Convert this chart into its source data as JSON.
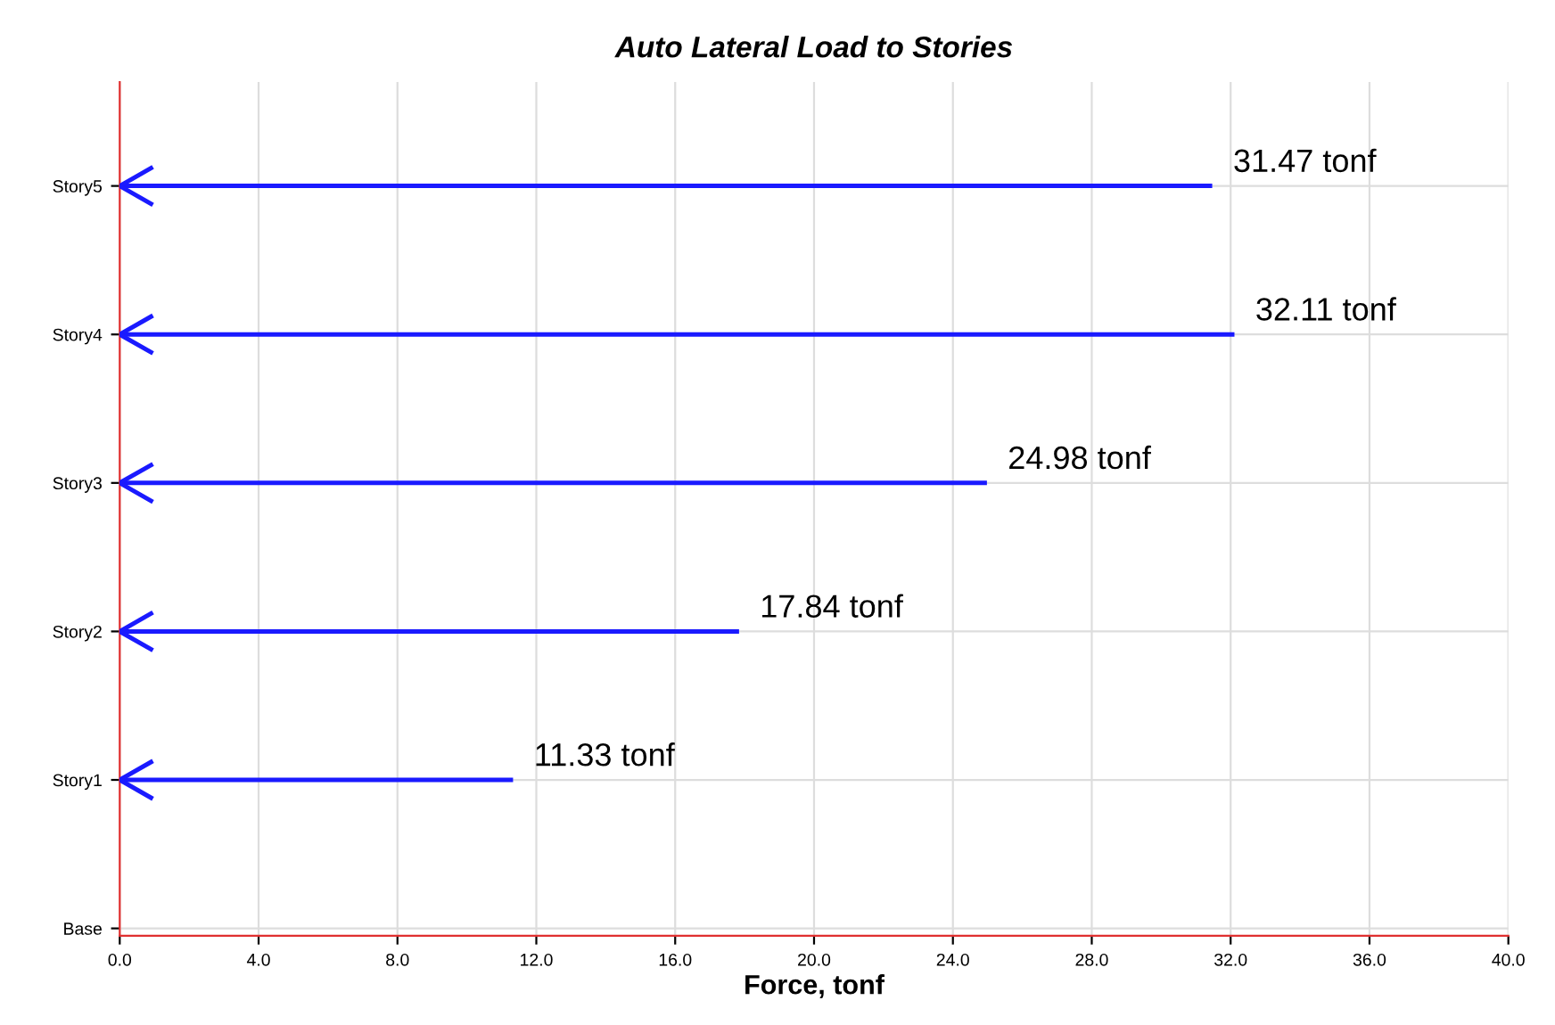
{
  "chart_data": {
    "type": "bar",
    "orientation": "horizontal",
    "title": "Auto Lateral Load to Stories",
    "xlabel": "Force, tonf",
    "categories": [
      "Story5",
      "Story4",
      "Story3",
      "Story2",
      "Story1",
      "Base"
    ],
    "values": [
      31.47,
      32.11,
      24.98,
      17.84,
      11.33,
      null
    ],
    "value_labels": [
      "31.47 tonf",
      "32.11 tonf",
      "24.98 tonf",
      "17.84 tonf",
      "11.33 tonf",
      null
    ],
    "color": "#1a1aff",
    "xlim": [
      0,
      40
    ],
    "xticks": [
      {
        "value": 0,
        "label": "0.0"
      },
      {
        "value": 4,
        "label": "4.0"
      },
      {
        "value": 8,
        "label": "8.0"
      },
      {
        "value": 12,
        "label": "12.0"
      },
      {
        "value": 16,
        "label": "16.0"
      },
      {
        "value": 20,
        "label": "20.0"
      },
      {
        "value": 24,
        "label": "24.0"
      },
      {
        "value": 28,
        "label": "28.0"
      },
      {
        "value": 32,
        "label": "32.0"
      },
      {
        "value": 36,
        "label": "36.0"
      },
      {
        "value": 40,
        "label": "40.0"
      }
    ],
    "grid": true
  }
}
